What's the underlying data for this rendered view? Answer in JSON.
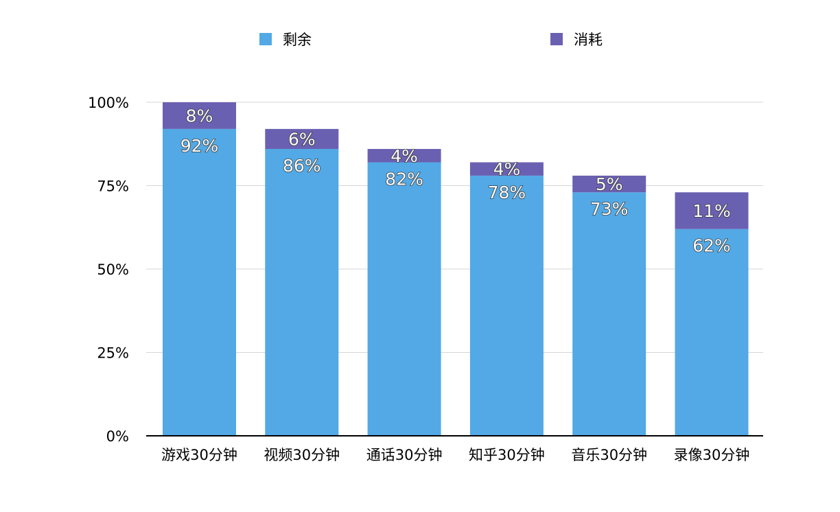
{
  "chart_data": {
    "type": "bar",
    "stacked": true,
    "categories": [
      "游戏30分钟",
      "视频30分钟",
      "通话30分钟",
      "知乎30分钟",
      "音乐30分钟",
      "录像30分钟"
    ],
    "series": [
      {
        "name": "剩余",
        "color": "#52a9e5",
        "values": [
          92,
          86,
          82,
          78,
          73,
          62
        ],
        "labels": [
          "92%",
          "86%",
          "82%",
          "78%",
          "73%",
          "62%"
        ]
      },
      {
        "name": "消耗",
        "color": "#6a60b2",
        "values": [
          8,
          6,
          4,
          4,
          5,
          11
        ],
        "labels": [
          "8%",
          "6%",
          "4%",
          "4%",
          "5%",
          "11%"
        ]
      }
    ],
    "ylim": [
      0,
      100
    ],
    "yticks": [
      0,
      25,
      50,
      75,
      100
    ],
    "ytick_labels": [
      "0%",
      "25%",
      "50%",
      "75%",
      "100%"
    ],
    "grid": true,
    "legend_position": "top"
  }
}
